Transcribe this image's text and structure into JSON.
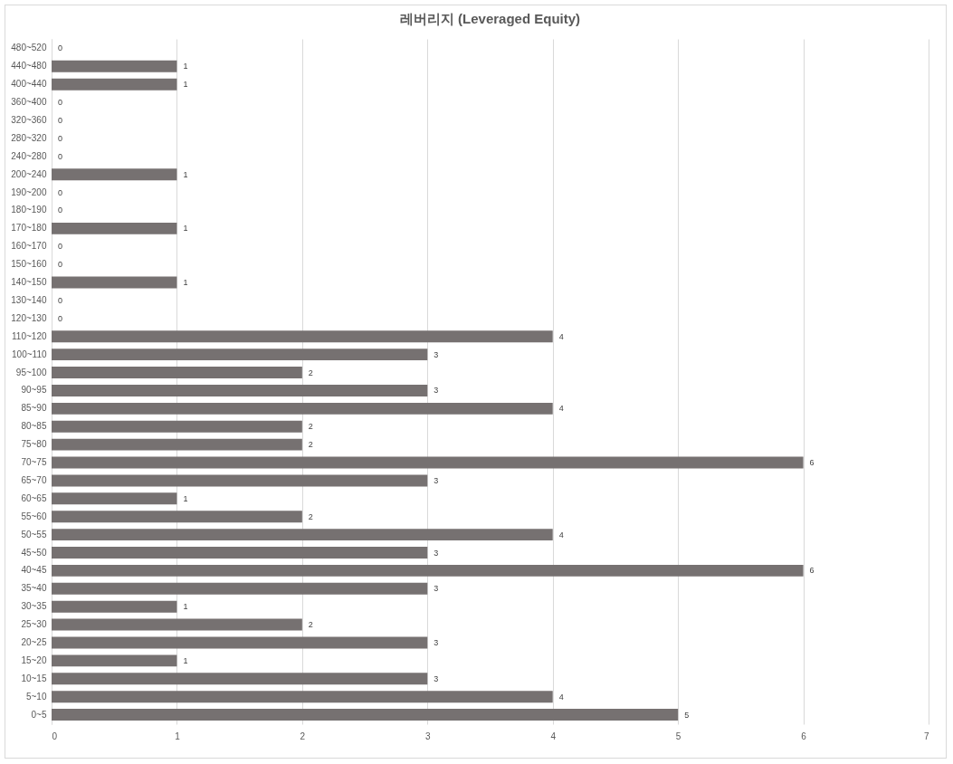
{
  "chart_data": {
    "type": "bar",
    "orientation": "horizontal",
    "title": "레버리지 (Leveraged Equity)",
    "categories": [
      "480~520",
      "440~480",
      "400~440",
      "360~400",
      "320~360",
      "280~320",
      "240~280",
      "200~240",
      "190~200",
      "180~190",
      "170~180",
      "160~170",
      "150~160",
      "140~150",
      "130~140",
      "120~130",
      "110~120",
      "100~110",
      "95~100",
      "90~95",
      "85~90",
      "80~85",
      "75~80",
      "70~75",
      "65~70",
      "60~65",
      "55~60",
      "50~55",
      "45~50",
      "40~45",
      "35~40",
      "30~35",
      "25~30",
      "20~25",
      "15~20",
      "10~15",
      "5~10",
      "0~5"
    ],
    "values": [
      0,
      1,
      1,
      0,
      0,
      0,
      0,
      1,
      0,
      0,
      1,
      0,
      0,
      1,
      0,
      0,
      4,
      3,
      2,
      3,
      4,
      2,
      2,
      6,
      3,
      1,
      2,
      4,
      3,
      6,
      3,
      1,
      2,
      3,
      1,
      3,
      4,
      5
    ],
    "color": "#767171",
    "xlim": [
      0,
      7
    ],
    "xticks": [
      0,
      1,
      2,
      3,
      4,
      5,
      6,
      7
    ],
    "grid": "x",
    "data_labels": true
  }
}
